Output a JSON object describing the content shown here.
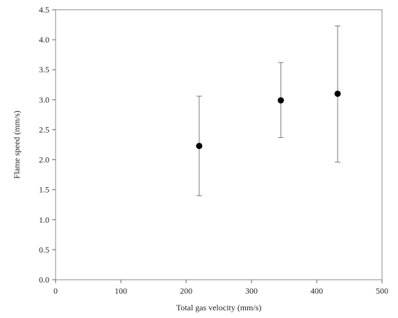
{
  "chart_data": {
    "type": "scatter",
    "title": "",
    "xlabel": "Total gas velocity (mm/s)",
    "ylabel": "Flame speed (mm/s)",
    "xlim": [
      0,
      500
    ],
    "ylim": [
      0,
      4.5
    ],
    "xticks": [
      0,
      100,
      200,
      300,
      400,
      500
    ],
    "yticks": [
      0,
      0.5,
      1.0,
      1.5,
      2.0,
      2.5,
      3.0,
      3.5,
      4.0,
      4.5
    ],
    "xtick_labels": [
      "0",
      "100",
      "200",
      "300",
      "400",
      "500"
    ],
    "ytick_labels": [
      "0.0",
      "0.5",
      "1.0",
      "1.5",
      "2.0",
      "2.5",
      "3.0",
      "3.5",
      "4.0",
      "4.5"
    ],
    "grid": false,
    "legend": "none",
    "points": [
      {
        "x": 220,
        "y": 2.23,
        "err_low": 1.4,
        "err_high": 3.06
      },
      {
        "x": 345,
        "y": 2.99,
        "err_low": 2.37,
        "err_high": 3.62
      },
      {
        "x": 432,
        "y": 3.1,
        "err_low": 1.96,
        "err_high": 4.23
      }
    ],
    "colors": {
      "point": "#000000",
      "errorbar": "#777777",
      "frame": "#888888"
    }
  }
}
